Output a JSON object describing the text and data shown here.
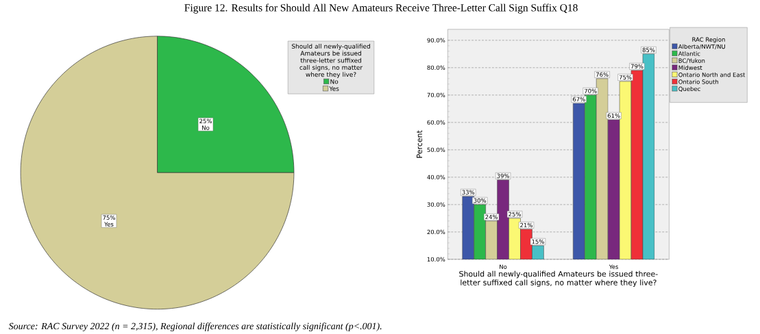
{
  "chart_data": [
    {
      "type": "pie",
      "title": "Figure 12. Results for Should All New Amateurs Receive Three-Letter Call Sign Suffix Q18",
      "categories": [
        "No",
        "Yes"
      ],
      "values": [
        25,
        75
      ],
      "colors": [
        "#2db84b",
        "#d4ce98"
      ],
      "value_labels": [
        "25%",
        "75%"
      ],
      "legend": "top right",
      "legend_title": "Should all newly-qualified Amateurs be issued three-letter suffixed call signs, no matter where they live?",
      "annotations": [
        "Source: RAC Survey 2022 (n = 2,315), Regional differences are statistically significant (p<.001)."
      ]
    },
    {
      "type": "bar",
      "categories": [
        "No",
        "Yes"
      ],
      "xlabel": "Should all newly-qualified Amateurs be issued three-letter suffixed call signs, no matter where they live?",
      "ylabel": "Percent",
      "ylim": [
        10,
        94
      ],
      "yticks": [
        {
          "value": 10,
          "label": "10.0%"
        },
        {
          "value": 20,
          "label": "20.0%"
        },
        {
          "value": 30,
          "label": "30.0%"
        },
        {
          "value": 40,
          "label": "40.0%"
        },
        {
          "value": 50,
          "label": "50.0%"
        },
        {
          "value": 60,
          "label": "60.0%"
        },
        {
          "value": 70,
          "label": "70.0%"
        },
        {
          "value": 80,
          "label": "80.0%"
        },
        {
          "value": 90,
          "label": "90.0%"
        }
      ],
      "grid": "y",
      "legend": "top right",
      "legend_title": "RAC Region",
      "series": [
        {
          "name": "Alberta/NWT/NU",
          "color": "#3d57a9",
          "values": [
            33,
            67
          ],
          "value_labels": [
            "33%",
            "67%"
          ]
        },
        {
          "name": "Atlantic",
          "color": "#2db84b",
          "values": [
            30,
            70
          ],
          "value_labels": [
            "30%",
            "70%"
          ]
        },
        {
          "name": "BC/Yukon",
          "color": "#d4ce98",
          "values": [
            24,
            76
          ],
          "value_labels": [
            "24%",
            "76%"
          ]
        },
        {
          "name": "Midwest",
          "color": "#78287d",
          "values": [
            39,
            61
          ],
          "value_labels": [
            "39%",
            "61%"
          ]
        },
        {
          "name": "Ontario North and East",
          "color": "#fbf873",
          "values": [
            25,
            75
          ],
          "value_labels": [
            "25%",
            "75%"
          ]
        },
        {
          "name": "Ontario South",
          "color": "#ef3038",
          "values": [
            21,
            79
          ],
          "value_labels": [
            "21%",
            "79%"
          ]
        },
        {
          "name": "Quebec",
          "color": "#48c0c6",
          "values": [
            15,
            85
          ],
          "value_labels": [
            "15%",
            "85%"
          ]
        }
      ]
    }
  ]
}
